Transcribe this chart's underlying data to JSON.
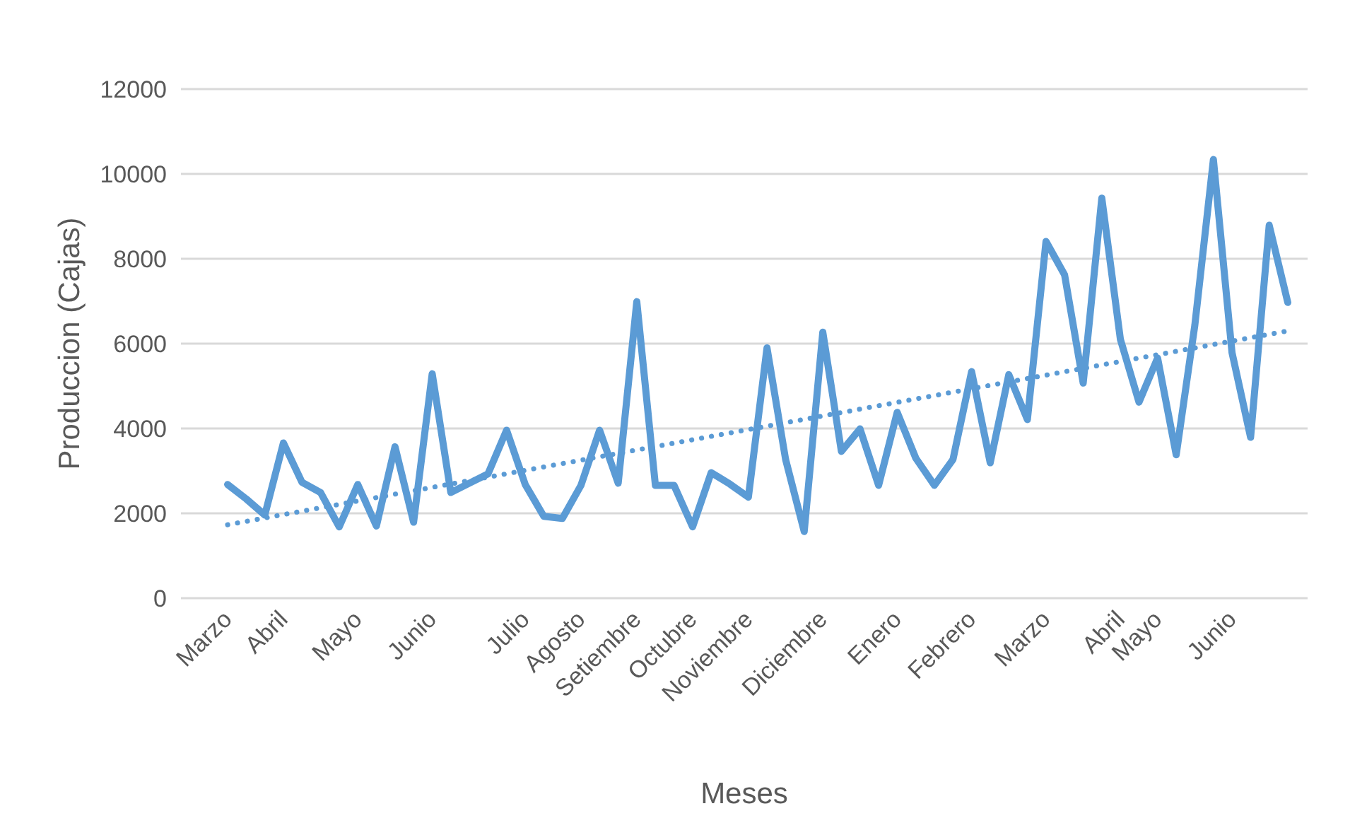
{
  "chart_data": {
    "type": "line",
    "xlabel": "Meses",
    "ylabel": "Produccion (Cajas)",
    "categories": [
      "Marzo",
      null,
      null,
      "Abril",
      null,
      null,
      null,
      "Mayo",
      null,
      null,
      null,
      "Junio",
      null,
      null,
      null,
      null,
      "Julio",
      null,
      null,
      "Agosto",
      null,
      null,
      "Setiembre",
      null,
      null,
      "Octubre",
      null,
      null,
      "Noviembre",
      null,
      null,
      null,
      "Diciembre",
      null,
      null,
      null,
      "Enero",
      null,
      null,
      null,
      "Febrero",
      null,
      null,
      null,
      "Marzo",
      null,
      null,
      null,
      "Abril",
      null,
      "Mayo",
      null,
      null,
      null,
      "Junio",
      null,
      null,
      null
    ],
    "series": [
      {
        "color": "#5b9bd5",
        "line_style": "solid",
        "values": [
          2680,
          2340,
          1960,
          3660,
          2730,
          2490,
          1680,
          2680,
          1700,
          3570,
          1790,
          5290,
          2490,
          2710,
          2930,
          3960,
          2680,
          1930,
          1880,
          2660,
          3960,
          2710,
          6990,
          2660,
          2660,
          1680,
          2960,
          2690,
          2380,
          5900,
          3270,
          1570,
          6270,
          3460,
          3990,
          2660,
          4380,
          3300,
          2660,
          3270,
          5340,
          3190,
          5270,
          4210,
          8410,
          7620,
          5070,
          9430,
          6100,
          4620,
          5660,
          3380,
          6430,
          10340,
          5790,
          3790,
          8790,
          6970
        ]
      },
      {
        "type": "line",
        "color": "#5b9bd5",
        "line_style": "dotted",
        "values": [
          1730,
          null,
          null,
          null,
          null,
          null,
          null,
          null,
          null,
          null,
          null,
          null,
          null,
          null,
          null,
          null,
          null,
          null,
          null,
          null,
          null,
          null,
          null,
          null,
          null,
          null,
          null,
          null,
          null,
          null,
          null,
          null,
          null,
          null,
          null,
          null,
          null,
          null,
          null,
          null,
          null,
          null,
          null,
          null,
          null,
          null,
          null,
          null,
          null,
          null,
          null,
          null,
          null,
          null,
          null,
          null,
          null,
          6300
        ]
      }
    ],
    "ylim": [
      0,
      12000
    ],
    "yticks": [
      0,
      2000,
      4000,
      6000,
      8000,
      10000,
      12000
    ],
    "grid": "y",
    "marker": "none"
  }
}
